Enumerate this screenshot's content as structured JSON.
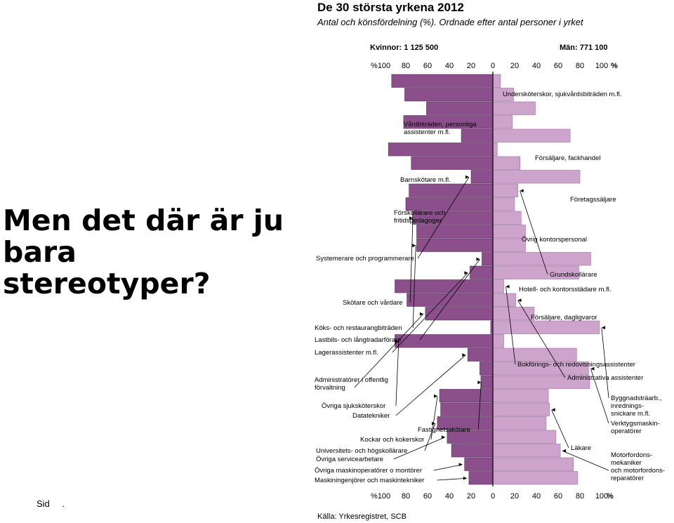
{
  "slide": {
    "headline_lines": [
      "Men det där är ju",
      "bara",
      "stereotyper?"
    ],
    "footer_label": "Sid",
    "footer_dot": "."
  },
  "chart_data": {
    "type": "bar",
    "title": "De 30 största yrkena 2012",
    "subtitle": "Antal och könsfördelning (%). Ordnade efter antal personer i yrket",
    "women_total_label": "Kvinnor: 1 125 500",
    "men_total_label": "Män: 771 100",
    "unit_label": "%",
    "tick_values": [
      100,
      80,
      60,
      40,
      20,
      0,
      20,
      40,
      60,
      80,
      100
    ],
    "xlim": [
      0,
      100
    ],
    "source": "Källa: Yrkesregistret, SCB",
    "colors": {
      "women": "#8b4f8c",
      "men": "#cca4cc",
      "outline": "#5a2d5a",
      "axis": "#000000"
    },
    "categories": [
      "Undersköterskor, sjukvårdsbiträden m.fl.",
      "Vårdbiträden, personliga assistenter m.fl.",
      "Försäljare, fackhandel",
      "Barnskötare m.fl.",
      "Företagssäljare",
      "Förskollärare och fritidspedagoger",
      "Övrig kontorspersonal",
      "Systemerare och programmerare",
      "Grundskollärare",
      "Hotell- och kontorsstädare m.fl.",
      "Skötare och vårdare",
      "Försäljare, dagligvaror",
      "Köks- och restaurangbiträden",
      "Lastbils- och långtradarförare",
      "Lagerassistenter m.fl.",
      "Bokförings- och redovisningsassistenter",
      "Administrativa assistenter",
      "Administratörer i offentlig förvaltning",
      "Byggnadsträarb., inrednings-snickare m.fl.",
      "Övriga sjuksköterskor",
      "Datatekniker",
      "Verktygsmaskin-operatörer",
      "Fastighetsskötare",
      "Kockar och kokerskor",
      "Läkare",
      "Universitets- och högskollärare",
      "Övriga servicearbetare",
      "Motorfordons-mekaniker och motorfordons-reparatörer",
      "Övriga maskinoperatörer o montörer",
      "Maskiningenjörer och maskintekniker"
    ],
    "series": [
      {
        "name": "Kvinnor",
        "values": [
          93,
          81,
          61,
          82,
          29,
          96,
          75,
          20,
          77,
          80,
          74,
          70,
          70,
          10,
          21,
          90,
          79,
          62,
          2,
          90,
          23,
          12,
          11,
          49,
          48,
          51,
          42,
          38,
          26,
          22
        ]
      },
      {
        "name": "Män",
        "values": [
          7,
          19,
          39,
          18,
          71,
          4,
          25,
          80,
          23,
          20,
          26,
          30,
          30,
          90,
          79,
          10,
          21,
          38,
          98,
          10,
          77,
          88,
          89,
          51,
          52,
          49,
          58,
          62,
          74,
          78
        ]
      }
    ]
  }
}
